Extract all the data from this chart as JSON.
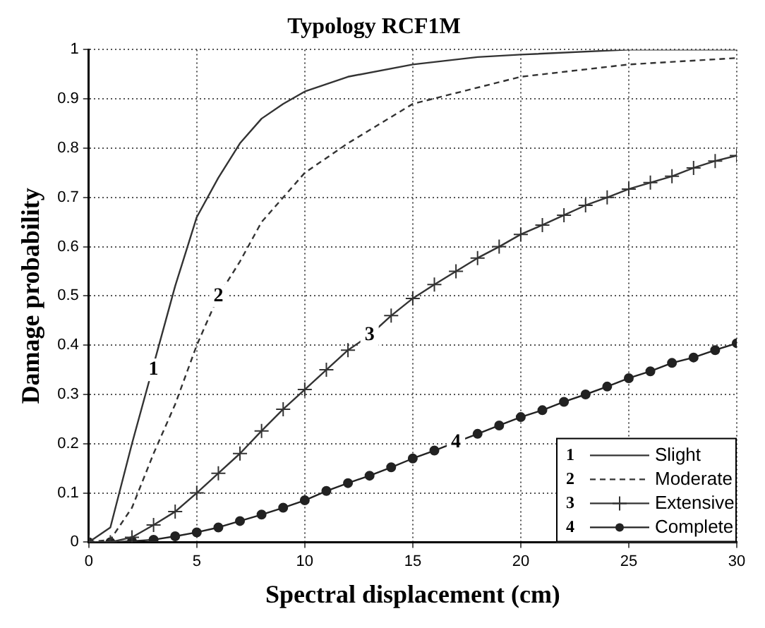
{
  "chart_data": {
    "type": "line",
    "title": "Typology RCF1M",
    "xlabel": "Spectral displacement (cm)",
    "ylabel": "Damage probability",
    "xlim": [
      0,
      30
    ],
    "xticks": [
      0,
      5,
      10,
      15,
      20,
      25,
      30
    ],
    "ylim": [
      0,
      1
    ],
    "yticks": [
      0,
      0.1,
      0.2,
      0.3,
      0.4,
      0.5,
      0.6,
      0.7,
      0.8,
      0.9,
      1
    ],
    "grid": true,
    "legend": "bottom right",
    "series": [
      {
        "name": "Slight",
        "color": "#333333",
        "marker": "none",
        "line_style": "solid",
        "x": [
          0,
          1,
          2,
          4,
          5,
          6,
          7,
          8,
          9,
          10,
          12,
          15,
          18,
          20,
          25,
          30
        ],
        "values": [
          0,
          0.03,
          0.2,
          0.52,
          0.66,
          0.74,
          0.81,
          0.86,
          0.89,
          0.915,
          0.945,
          0.97,
          0.985,
          0.99,
          1,
          1
        ]
      },
      {
        "name": "Moderate",
        "color": "#333333",
        "marker": "none",
        "line_style": "dashed",
        "x": [
          0,
          1,
          2,
          3,
          4,
          5,
          6,
          7,
          8,
          9,
          10,
          12,
          15,
          20,
          25,
          30
        ],
        "values": [
          0,
          0.005,
          0.07,
          0.18,
          0.28,
          0.4,
          0.5,
          0.57,
          0.65,
          0.7,
          0.75,
          0.81,
          0.89,
          0.945,
          0.97,
          0.983
        ]
      },
      {
        "name": "Extensive",
        "color": "#333333",
        "marker": "cross",
        "line_style": "solid",
        "x": [
          0,
          1,
          2,
          3,
          4,
          5,
          6,
          7,
          8,
          9,
          10,
          11,
          12,
          13,
          14,
          15,
          16,
          17,
          18,
          19,
          20,
          21,
          22,
          23,
          24,
          25,
          26,
          27,
          28,
          29,
          30
        ],
        "values": [
          0,
          0,
          0.01,
          0.035,
          0.062,
          0.1,
          0.14,
          0.18,
          0.226,
          0.27,
          0.31,
          0.35,
          0.39,
          0.42,
          0.46,
          0.495,
          0.523,
          0.55,
          0.577,
          0.6,
          0.625,
          0.644,
          0.664,
          0.684,
          0.7,
          0.717,
          0.73,
          0.743,
          0.76,
          0.774,
          0.785
        ]
      },
      {
        "name": "Complete",
        "color": "#222222",
        "marker": "circle",
        "line_style": "solid",
        "x": [
          0,
          1,
          2,
          3,
          4,
          5,
          6,
          7,
          8,
          9,
          10,
          11,
          12,
          13,
          14,
          15,
          16,
          17,
          18,
          19,
          20,
          21,
          22,
          23,
          24,
          25,
          26,
          27,
          28,
          29,
          30
        ],
        "values": [
          0,
          0,
          0.002,
          0.005,
          0.012,
          0.02,
          0.03,
          0.043,
          0.056,
          0.07,
          0.085,
          0.104,
          0.12,
          0.135,
          0.152,
          0.17,
          0.186,
          0.203,
          0.22,
          0.237,
          0.254,
          0.268,
          0.285,
          0.3,
          0.316,
          0.333,
          0.347,
          0.364,
          0.375,
          0.39,
          0.404
        ]
      }
    ],
    "annotations": [
      {
        "text": "1",
        "x": 3,
        "y": 0.35
      },
      {
        "text": "2",
        "x": 6,
        "y": 0.5
      },
      {
        "text": "3",
        "x": 13,
        "y": 0.42
      },
      {
        "text": "4",
        "x": 17,
        "y": 0.203
      }
    ]
  }
}
